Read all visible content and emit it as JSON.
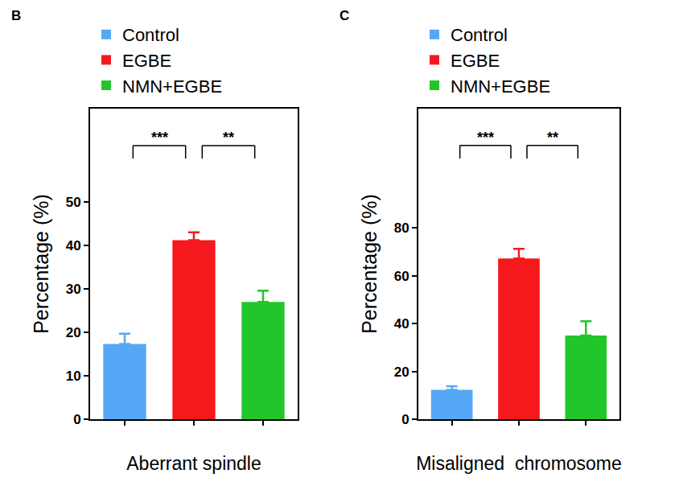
{
  "chart_data": [
    {
      "type": "bar",
      "title": "B",
      "x_label": "Aberrant spindle",
      "y_label": "Percentage (%)",
      "categories": [
        "Control",
        "EGBE",
        "NMN+EGBE"
      ],
      "values": [
        17.3,
        41.2,
        27.0
      ],
      "errors": [
        2.4,
        1.8,
        2.6
      ],
      "colors": [
        "#55a8f5",
        "#f5191e",
        "#22c52a"
      ],
      "ylim": [
        0,
        71.5
      ],
      "yticks": [
        0,
        10,
        20,
        30,
        40,
        50
      ],
      "legend": "top left",
      "tick_labels": "y",
      "significance": [
        {
          "from": 0,
          "to": 1,
          "label": "***",
          "y": 63
        },
        {
          "from": 1,
          "to": 2,
          "label": "**",
          "y": 63
        }
      ]
    },
    {
      "type": "bar",
      "title": "C",
      "x_label": "Misaligned  chromosome",
      "y_label": "Percentage (%)",
      "categories": [
        "Control",
        "EGBE",
        "NMN+EGBE"
      ],
      "values": [
        12.3,
        67.3,
        35.0
      ],
      "errors": [
        1.5,
        4.0,
        6.0
      ],
      "colors": [
        "#55a8f5",
        "#f5191e",
        "#22c52a"
      ],
      "ylim": [
        0,
        130
      ],
      "yticks": [
        0,
        20,
        40,
        60,
        80
      ],
      "legend": "top left",
      "tick_labels": "y",
      "significance": [
        {
          "from": 0,
          "to": 1,
          "label": "***",
          "y": 114.6
        },
        {
          "from": 1,
          "to": 2,
          "label": "**",
          "y": 114.6
        }
      ]
    }
  ]
}
